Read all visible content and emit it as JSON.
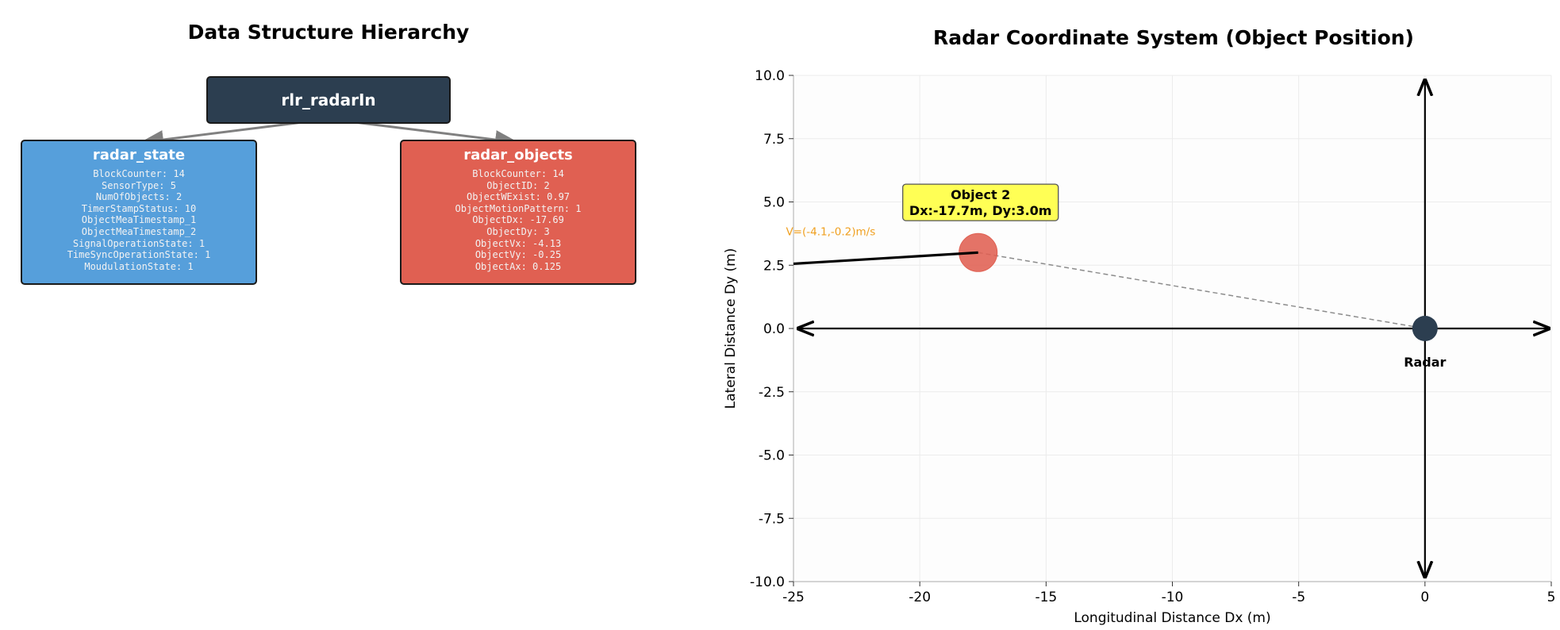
{
  "hierarchy": {
    "title": "Data Structure Hierarchy",
    "root": {
      "label": "rlr_radarIn",
      "color": "#2c3e50"
    },
    "children": [
      {
        "key": "state",
        "title": "radar_state",
        "color": "#569fdb",
        "fields": [
          "BlockCounter: 14",
          "SensorType: 5",
          "NumOfObjects: 2",
          "TimerStampStatus: 10",
          "ObjectMeaTimestamp_1",
          "ObjectMeaTimestamp_2",
          "SignalOperationState: 1",
          "TimeSyncOperationState: 1",
          "MoudulationState: 1"
        ]
      },
      {
        "key": "objects",
        "title": "radar_objects",
        "color": "#e06052",
        "fields": [
          "BlockCounter: 14",
          "ObjectID: 2",
          "ObjectWExist: 0.97",
          "ObjectMotionPattern: 1",
          "ObjectDx: -17.69",
          "ObjectDy: 3",
          "ObjectVx: -4.13",
          "ObjectVy: -0.25",
          "ObjectAx: 0.125"
        ]
      }
    ]
  },
  "chart_data": {
    "type": "scatter",
    "title": "Radar Coordinate System (Object Position)",
    "xlabel": "Longitudinal Distance Dx (m)",
    "ylabel": "Lateral Distance Dy (m)",
    "xlim": [
      -25,
      5
    ],
    "ylim": [
      -10,
      10
    ],
    "xticks": [
      -25,
      -20,
      -15,
      -10,
      -5,
      0,
      5
    ],
    "yticks": [
      10.0,
      7.5,
      5.0,
      2.5,
      0.0,
      -2.5,
      -5.0,
      -7.5,
      -10.0
    ],
    "grid": true,
    "radar": {
      "x": 0,
      "y": 0,
      "label": "Radar",
      "color": "#2c3e50"
    },
    "object": {
      "x": -17.69,
      "y": 3.0,
      "color": "#e06052",
      "annotation_line1": "Object 2",
      "annotation_line2": "Dx:-17.7m, Dy:3.0m",
      "annotation_color": "#ffff55",
      "velocity_label": "V=(-4.1,-0.2)m/s",
      "velocity_color": "#f0a020",
      "vx": -4.13,
      "vy": -0.25
    }
  }
}
